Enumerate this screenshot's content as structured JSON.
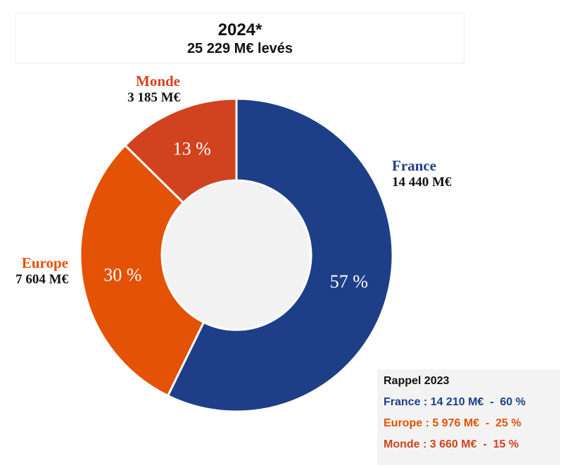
{
  "header": {
    "year": "2024*",
    "total": "25 229 M€ levés"
  },
  "colors": {
    "france": "#1e3f87",
    "europe": "#e35205",
    "monde": "#d0431e",
    "center": "#f2f2f2"
  },
  "chart_data": {
    "type": "pie",
    "donut": true,
    "title": "2024*",
    "subtitle": "25 229 M€ levés",
    "unit": "M€",
    "slices": [
      {
        "name": "France",
        "value": 14440,
        "value_label": "14 440 M€",
        "percent_label": "57 %",
        "color": "#1e3f87"
      },
      {
        "name": "Europe",
        "value": 7604,
        "value_label": "7 604 M€",
        "percent_label": "30 %",
        "color": "#e35205"
      },
      {
        "name": "Monde",
        "value": 3185,
        "value_label": "3 185 M€",
        "percent_label": "13 %",
        "color": "#d0431e"
      }
    ],
    "start_angle_deg": 0,
    "direction": "clockwise"
  },
  "recall": {
    "title": "Rappel 2023",
    "rows": [
      {
        "text": "France : 14 210 M€  -  60 %",
        "color": "#1e3f87"
      },
      {
        "text": "Europe : 5 976 M€  -  25 %",
        "color": "#e35205"
      },
      {
        "text": "Monde : 3 660 M€  -  15 %",
        "color": "#d0431e"
      }
    ]
  }
}
